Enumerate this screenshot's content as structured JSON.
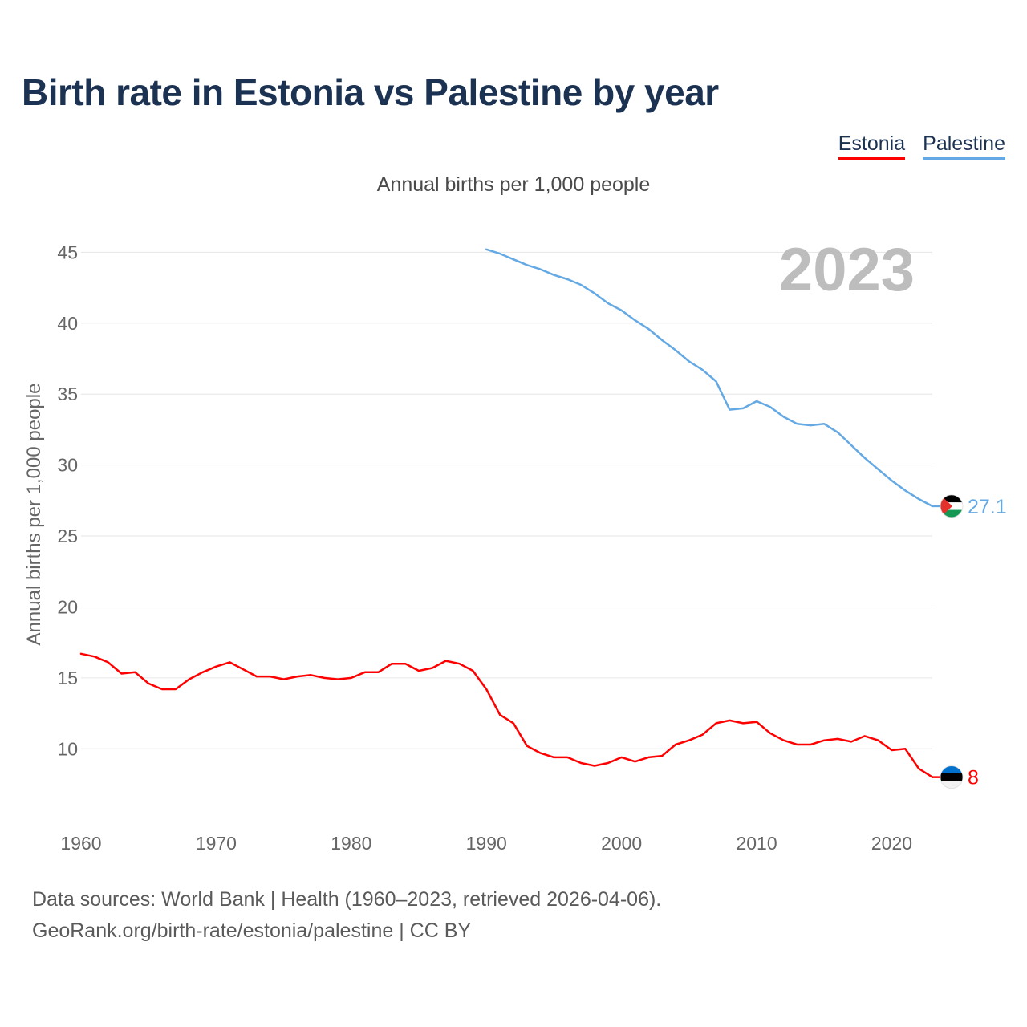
{
  "title": "Birth rate in Estonia vs Palestine by year",
  "subtitle": "Annual births per 1,000 people",
  "legend": [
    {
      "label": "Estonia",
      "color": "#ff0000"
    },
    {
      "label": "Palestine",
      "color": "#64a9e4"
    }
  ],
  "footer": {
    "line1": "Data sources: World Bank | Health (1960–2023, retrieved 2026-04-06).",
    "line2": "GeoRank.org/birth-rate/estonia/palestine | CC BY"
  },
  "chart_data": {
    "type": "line",
    "title": "Birth rate in Estonia vs Palestine by year",
    "ylabel": "Annual births per 1,000 people",
    "xlabel": "",
    "xlim": [
      1960,
      2023
    ],
    "ylim": [
      6,
      47
    ],
    "yticks": [
      10,
      15,
      20,
      25,
      30,
      35,
      40,
      45
    ],
    "xticks": [
      1960,
      1970,
      1980,
      1990,
      2000,
      2010,
      2020
    ],
    "grid": true,
    "year_label": "2023",
    "series": [
      {
        "name": "Estonia",
        "color": "#ff0000",
        "end_label": "8",
        "x": [
          1960,
          1961,
          1962,
          1963,
          1964,
          1965,
          1966,
          1967,
          1968,
          1969,
          1970,
          1971,
          1972,
          1973,
          1974,
          1975,
          1976,
          1977,
          1978,
          1979,
          1980,
          1981,
          1982,
          1983,
          1984,
          1985,
          1986,
          1987,
          1988,
          1989,
          1990,
          1991,
          1992,
          1993,
          1994,
          1995,
          1996,
          1997,
          1998,
          1999,
          2000,
          2001,
          2002,
          2003,
          2004,
          2005,
          2006,
          2007,
          2008,
          2009,
          2010,
          2011,
          2012,
          2013,
          2014,
          2015,
          2016,
          2017,
          2018,
          2019,
          2020,
          2021,
          2022,
          2023
        ],
        "values": [
          16.7,
          16.5,
          16.1,
          15.3,
          15.4,
          14.6,
          14.2,
          14.2,
          14.9,
          15.4,
          15.8,
          16.1,
          15.6,
          15.1,
          15.1,
          14.9,
          15.1,
          15.2,
          15.0,
          14.9,
          15.0,
          15.4,
          15.4,
          16.0,
          16.0,
          15.5,
          15.7,
          16.2,
          16.0,
          15.5,
          14.2,
          12.4,
          11.8,
          10.2,
          9.7,
          9.4,
          9.4,
          9.0,
          8.8,
          9.0,
          9.4,
          9.1,
          9.4,
          9.5,
          10.3,
          10.6,
          11.0,
          11.8,
          12.0,
          11.8,
          11.9,
          11.1,
          10.6,
          10.3,
          10.3,
          10.6,
          10.7,
          10.5,
          10.9,
          10.6,
          9.9,
          10.0,
          8.6,
          8.0
        ]
      },
      {
        "name": "Palestine",
        "color": "#64a9e4",
        "end_label": "27.1",
        "x": [
          1990,
          1991,
          1992,
          1993,
          1994,
          1995,
          1996,
          1997,
          1998,
          1999,
          2000,
          2001,
          2002,
          2003,
          2004,
          2005,
          2006,
          2007,
          2008,
          2009,
          2010,
          2011,
          2012,
          2013,
          2014,
          2015,
          2016,
          2017,
          2018,
          2019,
          2020,
          2021,
          2022,
          2023
        ],
        "values": [
          45.2,
          44.9,
          44.5,
          44.1,
          43.8,
          43.4,
          43.1,
          42.7,
          42.1,
          41.4,
          40.9,
          40.2,
          39.6,
          38.8,
          38.1,
          37.3,
          36.7,
          35.9,
          33.9,
          34.0,
          34.5,
          34.1,
          33.4,
          32.9,
          32.8,
          32.9,
          32.3,
          31.4,
          30.5,
          29.7,
          28.9,
          28.2,
          27.6,
          27.1
        ]
      }
    ]
  }
}
